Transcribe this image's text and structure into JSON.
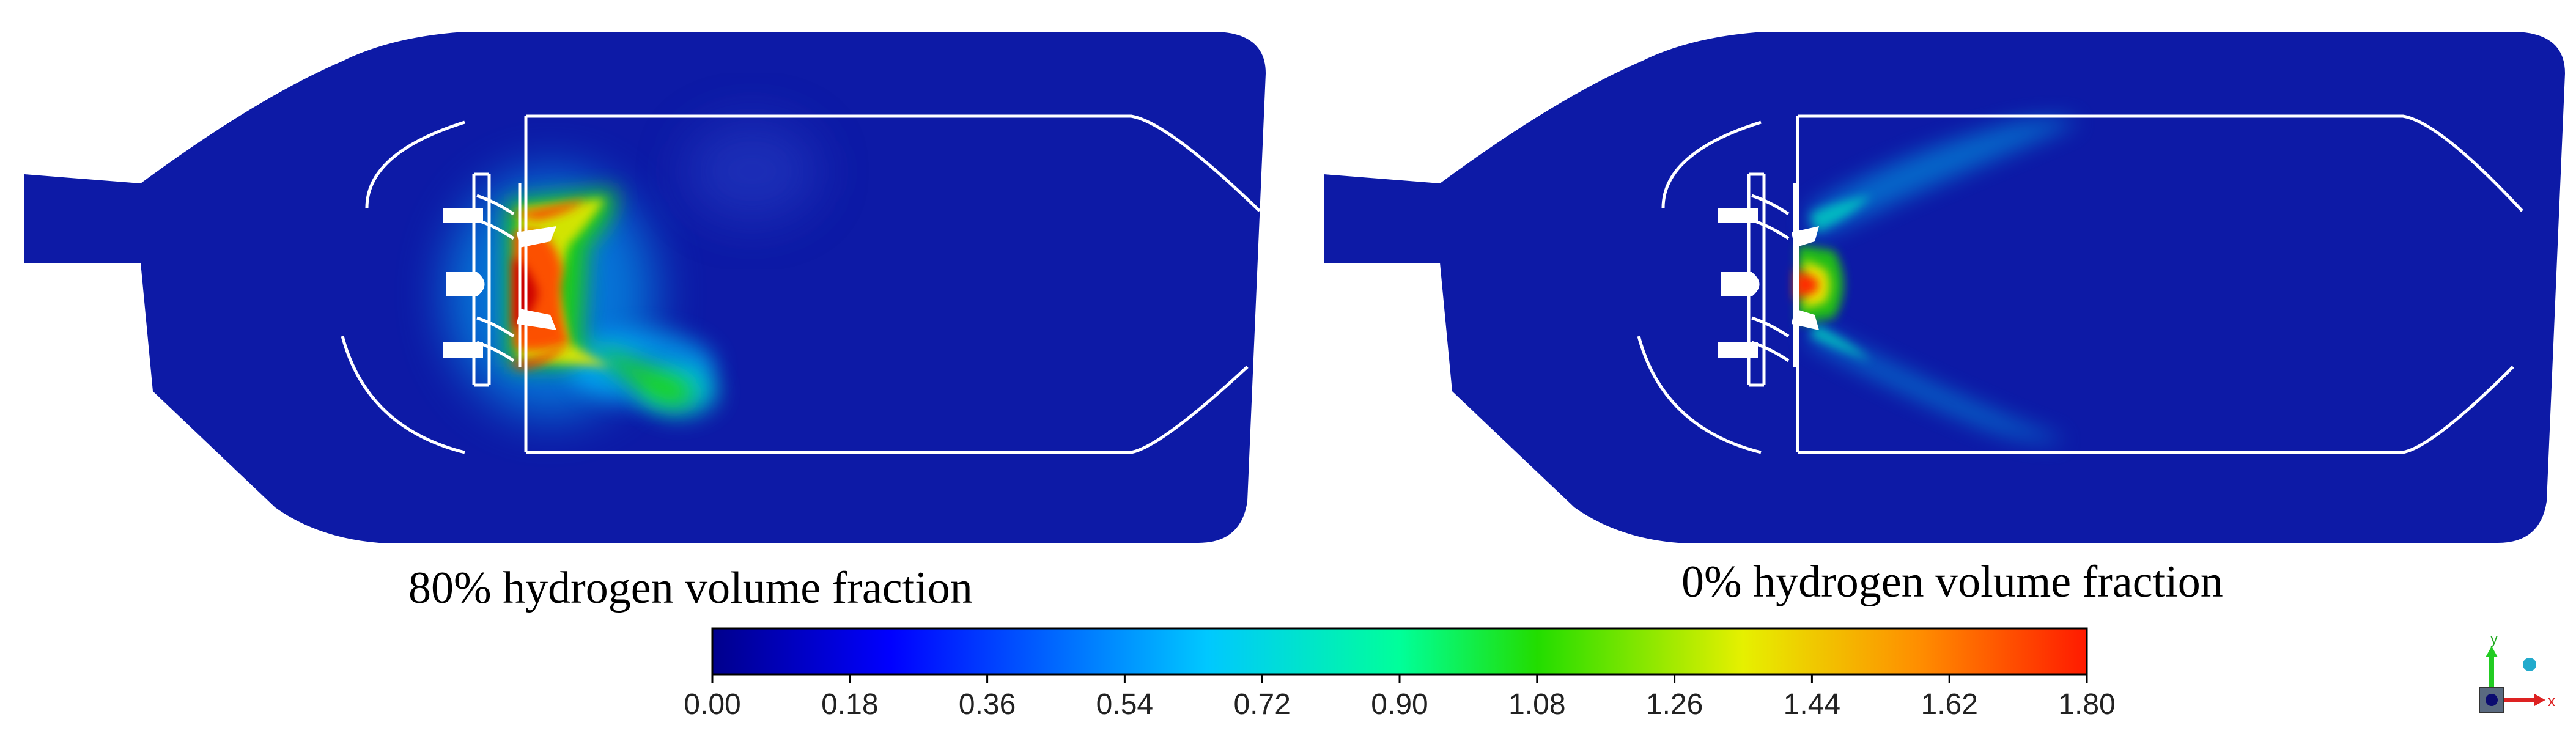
{
  "captions": {
    "left": "80% hydrogen volume fraction",
    "right": "0% hydrogen volume fraction"
  },
  "colorbar": {
    "ticks": [
      "0.00",
      "0.18",
      "0.36",
      "0.54",
      "0.72",
      "0.90",
      "1.08",
      "1.26",
      "1.44",
      "1.62",
      "1.80"
    ],
    "min": 0.0,
    "max": 1.8,
    "colormap": [
      "#00008c",
      "#0000ff",
      "#00c8ff",
      "#00ff9a",
      "#22dd00",
      "#e6f000",
      "#ff8c00",
      "#ff1a00"
    ]
  },
  "colors": {
    "background_field": "#0d1aa6",
    "outline": "#ffffff"
  },
  "axis_triad": {
    "y_label": "y",
    "x_label": "x"
  }
}
